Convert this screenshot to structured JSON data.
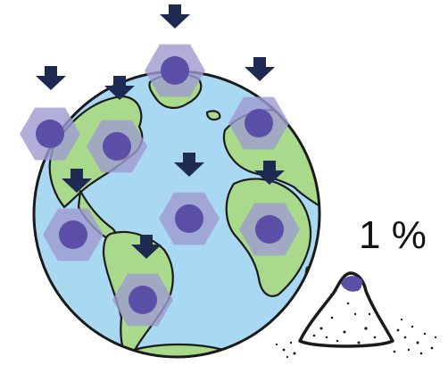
{
  "percentage_text": "1 %",
  "colors": {
    "ocean": "#a9d8f2",
    "land": "#a9d98a",
    "outline": "#1a1a1a",
    "hexagon": "#9e9bd0",
    "dot": "#5b4fa8",
    "arrow": "#1e2a52",
    "pile_tip": "#5b4fa8"
  },
  "icons": {
    "marker": "hexagon-dot-icon",
    "arrow": "down-arrow-icon",
    "pile": "sand-pile-icon"
  }
}
